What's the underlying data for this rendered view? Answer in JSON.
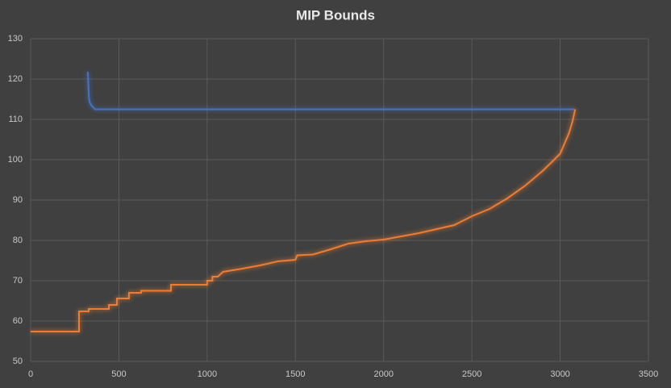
{
  "chart_data": {
    "type": "line",
    "title": "MIP Bounds",
    "xlim": [
      0,
      3500
    ],
    "xticks": [
      0,
      500,
      1000,
      1500,
      2000,
      2500,
      3000,
      3500
    ],
    "ylim": [
      50,
      130
    ],
    "yticks": [
      50,
      60,
      70,
      80,
      90,
      100,
      110,
      120,
      130
    ],
    "grid": true,
    "series": [
      {
        "color": "#4472c4",
        "x": [
          324,
          330,
          335,
          345,
          365,
          3079
        ],
        "values": [
          121.8,
          115.5,
          114.2,
          113.4,
          112.5,
          112.5
        ]
      },
      {
        "color": "#ed7d31",
        "x": [
          0,
          274,
          274,
          329,
          329,
          443,
          443,
          489,
          489,
          557,
          557,
          626,
          626,
          795,
          795,
          1000,
          1000,
          1030,
          1030,
          1060,
          1090,
          1200,
          1300,
          1400,
          1500,
          1510,
          1600,
          1700,
          1800,
          1900,
          2000,
          2100,
          2200,
          2300,
          2400,
          2500,
          2600,
          2700,
          2800,
          2900,
          2950,
          3000,
          3050,
          3070,
          3085
        ],
        "values": [
          57.4,
          57.4,
          62.4,
          62.4,
          63,
          63,
          64,
          64,
          65.6,
          65.6,
          67,
          67,
          67.5,
          67.5,
          69,
          69,
          70,
          70,
          71,
          71,
          72.2,
          73,
          73.8,
          74.8,
          75.2,
          76.3,
          76.5,
          77.8,
          79.2,
          79.8,
          80.2,
          81,
          81.8,
          82.8,
          83.8,
          86,
          87.8,
          90.4,
          93.5,
          97.2,
          99.3,
          101.5,
          106.6,
          109.5,
          112.5
        ]
      }
    ]
  }
}
